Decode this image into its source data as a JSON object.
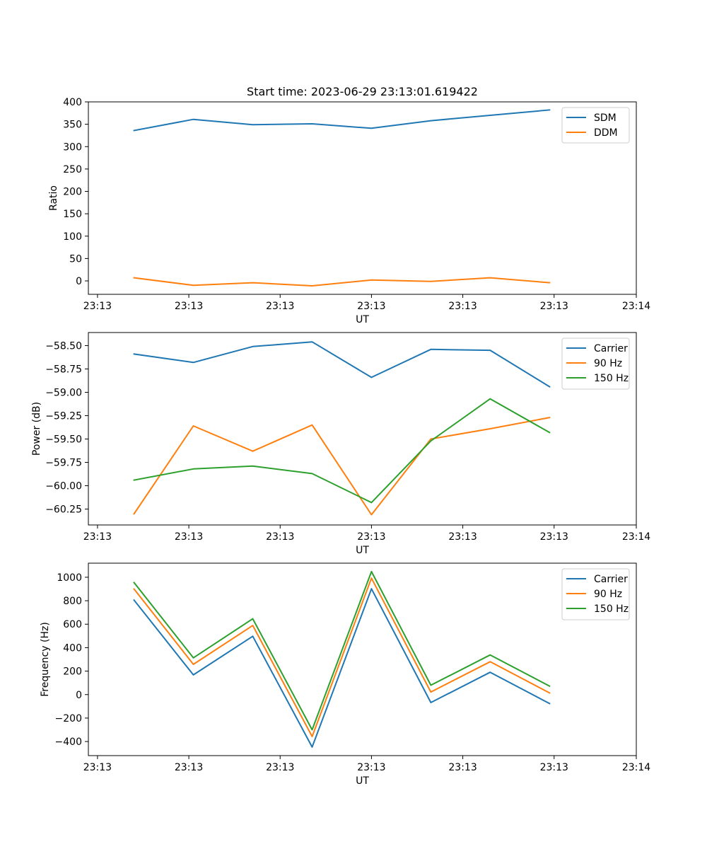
{
  "chart_data": [
    {
      "type": "line",
      "title": "Start time: 2023-06-29 23:13:01.619422",
      "xlabel": "UT",
      "ylabel": "Ratio",
      "x_tick_labels": [
        "23:13",
        "23:13",
        "23:13",
        "23:13",
        "23:13",
        "23:13",
        "23:14"
      ],
      "y_ticks": [
        0,
        50,
        100,
        150,
        200,
        250,
        300,
        350,
        400
      ],
      "y_tick_labels": [
        "0",
        "50",
        "100",
        "150",
        "200",
        "250",
        "300",
        "350",
        "400"
      ],
      "xlim": [
        0,
        6
      ],
      "ylim": [
        -30,
        400
      ],
      "x": [
        0.5,
        1.15,
        1.8,
        2.45,
        3.1,
        3.75,
        4.4,
        5.05
      ],
      "series": [
        {
          "name": "SDM",
          "color": "#1f77b4",
          "values": [
            336,
            361,
            349,
            351,
            341,
            358,
            370,
            382
          ]
        },
        {
          "name": "DDM",
          "color": "#ff7f0e",
          "values": [
            7,
            -10,
            -4,
            -11,
            2,
            -1,
            7,
            -4
          ]
        }
      ],
      "legend_position": "top-right",
      "grid": false
    },
    {
      "type": "line",
      "title": "",
      "xlabel": "UT",
      "ylabel": "Power (dB)",
      "x_tick_labels": [
        "23:13",
        "23:13",
        "23:13",
        "23:13",
        "23:13",
        "23:13",
        "23:14"
      ],
      "y_ticks": [
        -60.25,
        -60.0,
        -59.75,
        -59.5,
        -59.25,
        -59.0,
        -58.75,
        -58.5
      ],
      "y_tick_labels": [
        "−60.25",
        "−60.00",
        "−59.75",
        "−59.50",
        "−59.25",
        "−59.00",
        "−58.75",
        "−58.50"
      ],
      "xlim": [
        0,
        6
      ],
      "ylim": [
        -60.42,
        -58.36
      ],
      "x": [
        0.5,
        1.15,
        1.8,
        2.45,
        3.1,
        3.75,
        4.4,
        5.05
      ],
      "series": [
        {
          "name": "Carrier",
          "color": "#1f77b4",
          "values": [
            -58.59,
            -58.68,
            -58.51,
            -58.46,
            -58.84,
            -58.54,
            -58.55,
            -58.94
          ]
        },
        {
          "name": "90 Hz",
          "color": "#ff7f0e",
          "values": [
            -60.3,
            -59.36,
            -59.63,
            -59.35,
            -60.31,
            -59.5,
            -59.39,
            -59.27
          ]
        },
        {
          "name": "150 Hz",
          "color": "#2ca02c",
          "values": [
            -59.94,
            -59.82,
            -59.79,
            -59.87,
            -60.18,
            -59.52,
            -59.07,
            -59.43
          ]
        }
      ],
      "legend_position": "top-right",
      "grid": false
    },
    {
      "type": "line",
      "title": "",
      "xlabel": "UT",
      "ylabel": "Frequency (Hz)",
      "x_tick_labels": [
        "23:13",
        "23:13",
        "23:13",
        "23:13",
        "23:13",
        "23:13",
        "23:14"
      ],
      "y_ticks": [
        -400,
        -200,
        0,
        200,
        400,
        600,
        800,
        1000
      ],
      "y_tick_labels": [
        "−400",
        "−200",
        "0",
        "200",
        "400",
        "600",
        "800",
        "1000"
      ],
      "xlim": [
        0,
        6
      ],
      "ylim": [
        -520,
        1120
      ],
      "x": [
        0.5,
        1.15,
        1.8,
        2.45,
        3.1,
        3.75,
        4.4,
        5.05
      ],
      "series": [
        {
          "name": "Carrier",
          "color": "#1f77b4",
          "values": [
            805,
            168,
            497,
            -447,
            902,
            -68,
            190,
            -76
          ]
        },
        {
          "name": "90 Hz",
          "color": "#ff7f0e",
          "values": [
            900,
            258,
            589,
            -357,
            992,
            22,
            280,
            14
          ]
        },
        {
          "name": "150 Hz",
          "color": "#2ca02c",
          "values": [
            955,
            313,
            646,
            -300,
            1048,
            80,
            338,
            72
          ]
        }
      ],
      "legend_position": "top-right",
      "grid": false
    }
  ]
}
